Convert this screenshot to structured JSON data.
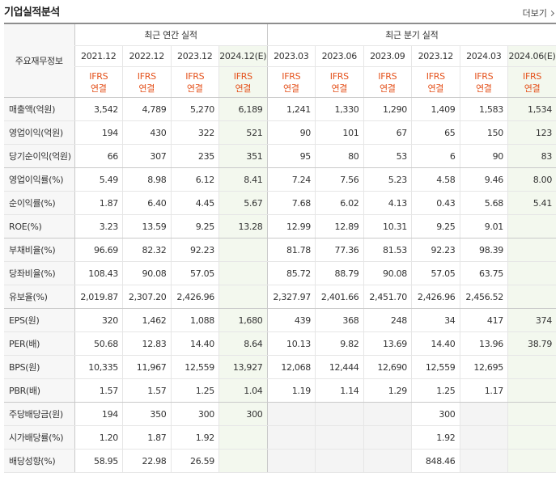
{
  "header": {
    "title": "기업실적분석",
    "more": "더보기"
  },
  "table": {
    "corner": "주요재무정보",
    "groups": [
      {
        "label": "최근 연간 실적",
        "columns": [
          {
            "period": "2021.12",
            "standard": "IFRS",
            "basis": "연결",
            "estimate": false
          },
          {
            "period": "2022.12",
            "standard": "IFRS",
            "basis": "연결",
            "estimate": false
          },
          {
            "period": "2023.12",
            "standard": "IFRS",
            "basis": "연결",
            "estimate": false
          },
          {
            "period": "2024.12(E)",
            "standard": "IFRS",
            "basis": "연결",
            "estimate": true
          }
        ]
      },
      {
        "label": "최근 분기 실적",
        "columns": [
          {
            "period": "2023.03",
            "standard": "IFRS",
            "basis": "연결",
            "estimate": false
          },
          {
            "period": "2023.06",
            "standard": "IFRS",
            "basis": "연결",
            "estimate": false
          },
          {
            "period": "2023.09",
            "standard": "IFRS",
            "basis": "연결",
            "estimate": false
          },
          {
            "period": "2023.12",
            "standard": "IFRS",
            "basis": "연결",
            "estimate": false
          },
          {
            "period": "2024.03",
            "standard": "IFRS",
            "basis": "연결",
            "estimate": false
          },
          {
            "period": "2024.06(E)",
            "standard": "IFRS",
            "basis": "연결",
            "estimate": true
          }
        ]
      }
    ],
    "rows": [
      {
        "label": "매출액(억원)",
        "cells": [
          "3,542",
          "4,789",
          "5,270",
          "6,189",
          "1,241",
          "1,330",
          "1,290",
          "1,409",
          "1,583",
          "1,534"
        ]
      },
      {
        "label": "영업이익(억원)",
        "cells": [
          "194",
          "430",
          "322",
          "521",
          "90",
          "101",
          "67",
          "65",
          "150",
          "123"
        ]
      },
      {
        "label": "당기순이익(억원)",
        "cells": [
          "66",
          "307",
          "235",
          "351",
          "95",
          "80",
          "53",
          "6",
          "90",
          "83"
        ]
      },
      {
        "label": "영업이익률(%)",
        "cells": [
          "5.49",
          "8.98",
          "6.12",
          "8.41",
          "7.24",
          "7.56",
          "5.23",
          "4.58",
          "9.46",
          "8.00"
        ]
      },
      {
        "label": "순이익률(%)",
        "cells": [
          "1.87",
          "6.40",
          "4.45",
          "5.67",
          "7.68",
          "6.02",
          "4.13",
          "0.43",
          "5.68",
          "5.41"
        ]
      },
      {
        "label": "ROE(%)",
        "cells": [
          "3.23",
          "13.59",
          "9.25",
          "13.28",
          "12.99",
          "12.89",
          "10.31",
          "9.25",
          "9.01",
          null
        ]
      },
      {
        "label": "부채비율(%)",
        "cells": [
          "96.69",
          "82.32",
          "92.23",
          null,
          "81.78",
          "77.36",
          "81.53",
          "92.23",
          "98.39",
          null
        ]
      },
      {
        "label": "당좌비율(%)",
        "cells": [
          "108.43",
          "90.08",
          "57.05",
          null,
          "85.72",
          "88.79",
          "90.08",
          "57.05",
          "63.75",
          null
        ]
      },
      {
        "label": "유보율(%)",
        "cells": [
          "2,019.87",
          "2,307.20",
          "2,426.96",
          null,
          "2,327.97",
          "2,401.66",
          "2,451.70",
          "2,426.96",
          "2,456.52",
          null
        ]
      },
      {
        "label": "EPS(원)",
        "cells": [
          "320",
          "1,462",
          "1,088",
          "1,680",
          "439",
          "368",
          "248",
          "34",
          "417",
          "374"
        ]
      },
      {
        "label": "PER(배)",
        "cells": [
          "50.68",
          "12.83",
          "14.40",
          "8.64",
          "10.13",
          "9.82",
          "13.69",
          "14.40",
          "13.96",
          "38.79"
        ]
      },
      {
        "label": "BPS(원)",
        "cells": [
          "10,335",
          "11,967",
          "12,559",
          "13,927",
          "12,068",
          "12,444",
          "12,690",
          "12,559",
          "12,695",
          null
        ]
      },
      {
        "label": "PBR(배)",
        "cells": [
          "1.57",
          "1.57",
          "1.25",
          "1.04",
          "1.19",
          "1.14",
          "1.29",
          "1.25",
          "1.17",
          null
        ]
      },
      {
        "label": "주당배당금(원)",
        "cells": [
          "194",
          "350",
          "300",
          "300",
          null,
          null,
          null,
          "300",
          null,
          null
        ]
      },
      {
        "label": "시가배당률(%)",
        "cells": [
          "1.20",
          "1.87",
          "1.92",
          null,
          null,
          null,
          null,
          "1.92",
          null,
          null
        ]
      },
      {
        "label": "배당성향(%)",
        "cells": [
          "58.95",
          "22.98",
          "26.59",
          null,
          null,
          null,
          null,
          "848.46",
          null,
          null
        ]
      }
    ]
  }
}
